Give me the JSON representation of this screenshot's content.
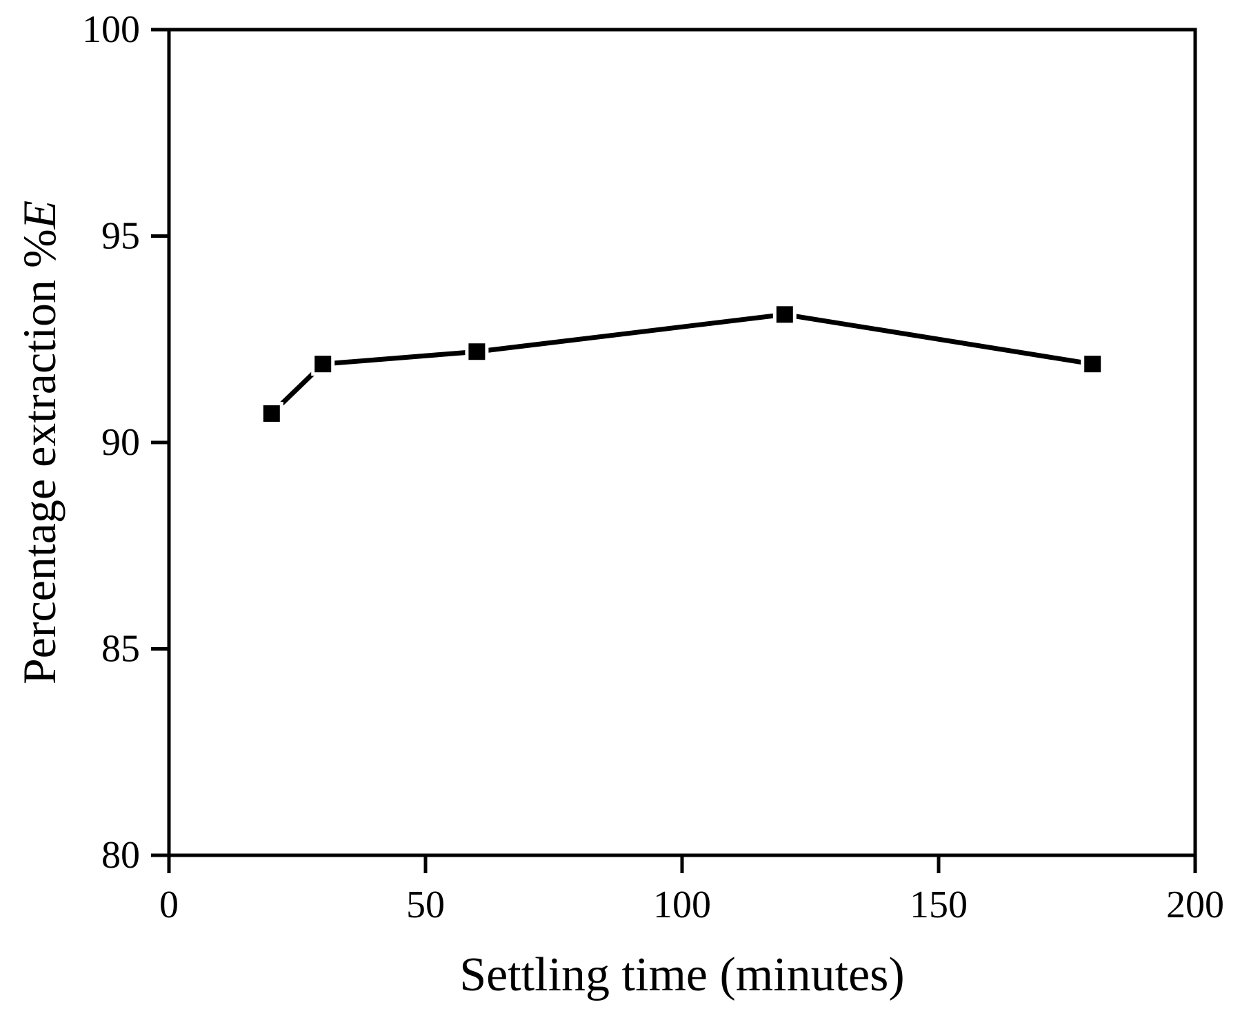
{
  "chart_data": {
    "type": "line",
    "title": "",
    "xlabel": "Settling time (minutes)",
    "ylabel_prefix": "Percentage extraction %",
    "ylabel_symbol": "E",
    "x": [
      20,
      30,
      60,
      120,
      180
    ],
    "series": [
      {
        "name": "percentage extraction",
        "values": [
          90.7,
          91.9,
          92.2,
          93.1,
          91.9
        ]
      }
    ],
    "xlim": [
      0,
      200
    ],
    "ylim": [
      80,
      100
    ],
    "xticks": [
      0,
      50,
      100,
      150,
      200
    ],
    "yticks": [
      80,
      85,
      90,
      95,
      100
    ],
    "grid": false,
    "legend_position": "none",
    "marker": "filled-square",
    "line_style": "solid",
    "colors": {
      "line": "#000000",
      "marker": "#000000",
      "axis": "#000000",
      "text": "#000000",
      "background": "#ffffff"
    }
  }
}
